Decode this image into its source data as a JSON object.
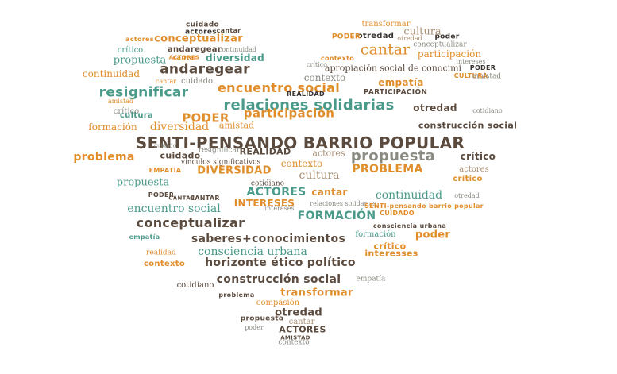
{
  "palette": {
    "brown": "#5b4a3e",
    "orange": "#e08e2c",
    "teal": "#4a9a8a",
    "tan": "#a88e72",
    "grey": "#8a8a82",
    "dark": "#3a3430"
  },
  "words": [
    "cuidado",
    "transformar",
    "actores",
    "cantar",
    "otredad",
    "cultura",
    "poder",
    "actores",
    "conceptualizar",
    "PODER",
    "otredad",
    "conceptualizar",
    "crítico",
    "continuidad",
    "cantar",
    "participación",
    "andaregear",
    "diversidad",
    "contexto",
    "propuesta",
    "cantar",
    "intereses",
    "crítico",
    "ACTORES",
    "apropiación social de conocimi",
    "PODER",
    "continuidad",
    "andaregear",
    "contexto",
    "CULTURA",
    "amistad",
    "cantar",
    "cuidado",
    "empatía",
    "resignificar",
    "encuentro social",
    "REALIDAD",
    "PARTICIPACIÓN",
    "relaciones solidarias",
    "otredad",
    "crítico",
    "cultura",
    "PODER",
    "cotidiano",
    "participación",
    "construcción social",
    "formación",
    "diversidad",
    "amistad",
    "SENTI-PENSANDO BARRIO POPULAR",
    "propuesta",
    "crítico",
    "problema",
    "cuidado",
    "REALIDAD",
    "actores",
    "contexto",
    "PROBLEMA",
    "actores",
    "EMPATÍA",
    "DIVERSIDAD",
    "cultura",
    "crítico",
    "propuesta",
    "ACTORES",
    "cantar",
    "continuidad",
    "PODER",
    "otredad",
    "encuentro social",
    "intereses",
    "CANTAR",
    "INTERESES",
    "relaciones solidarias",
    "FORMACIÓN",
    "CUIDADO",
    "conceptualizar",
    "consciencia urbana",
    "saberes+conocimientos",
    "empatía",
    "poder",
    "realidad",
    "consciencia urbana",
    "crítico",
    "contexto",
    "interesses",
    "horizonte ético político",
    "construcción social",
    "transformar",
    "empatía",
    "cotidiano",
    "compasión",
    "otredad",
    "propuesta",
    "ACTORES",
    "cantar",
    "AMISTAD",
    "contexto",
    "poder",
    "SENTI-pensando barrio popular",
    "vínculos significativos",
    "cuidado",
    "CANTAR",
    "cotidiano",
    "resignificar",
    "problema",
    "amistad",
    "formación"
  ]
}
